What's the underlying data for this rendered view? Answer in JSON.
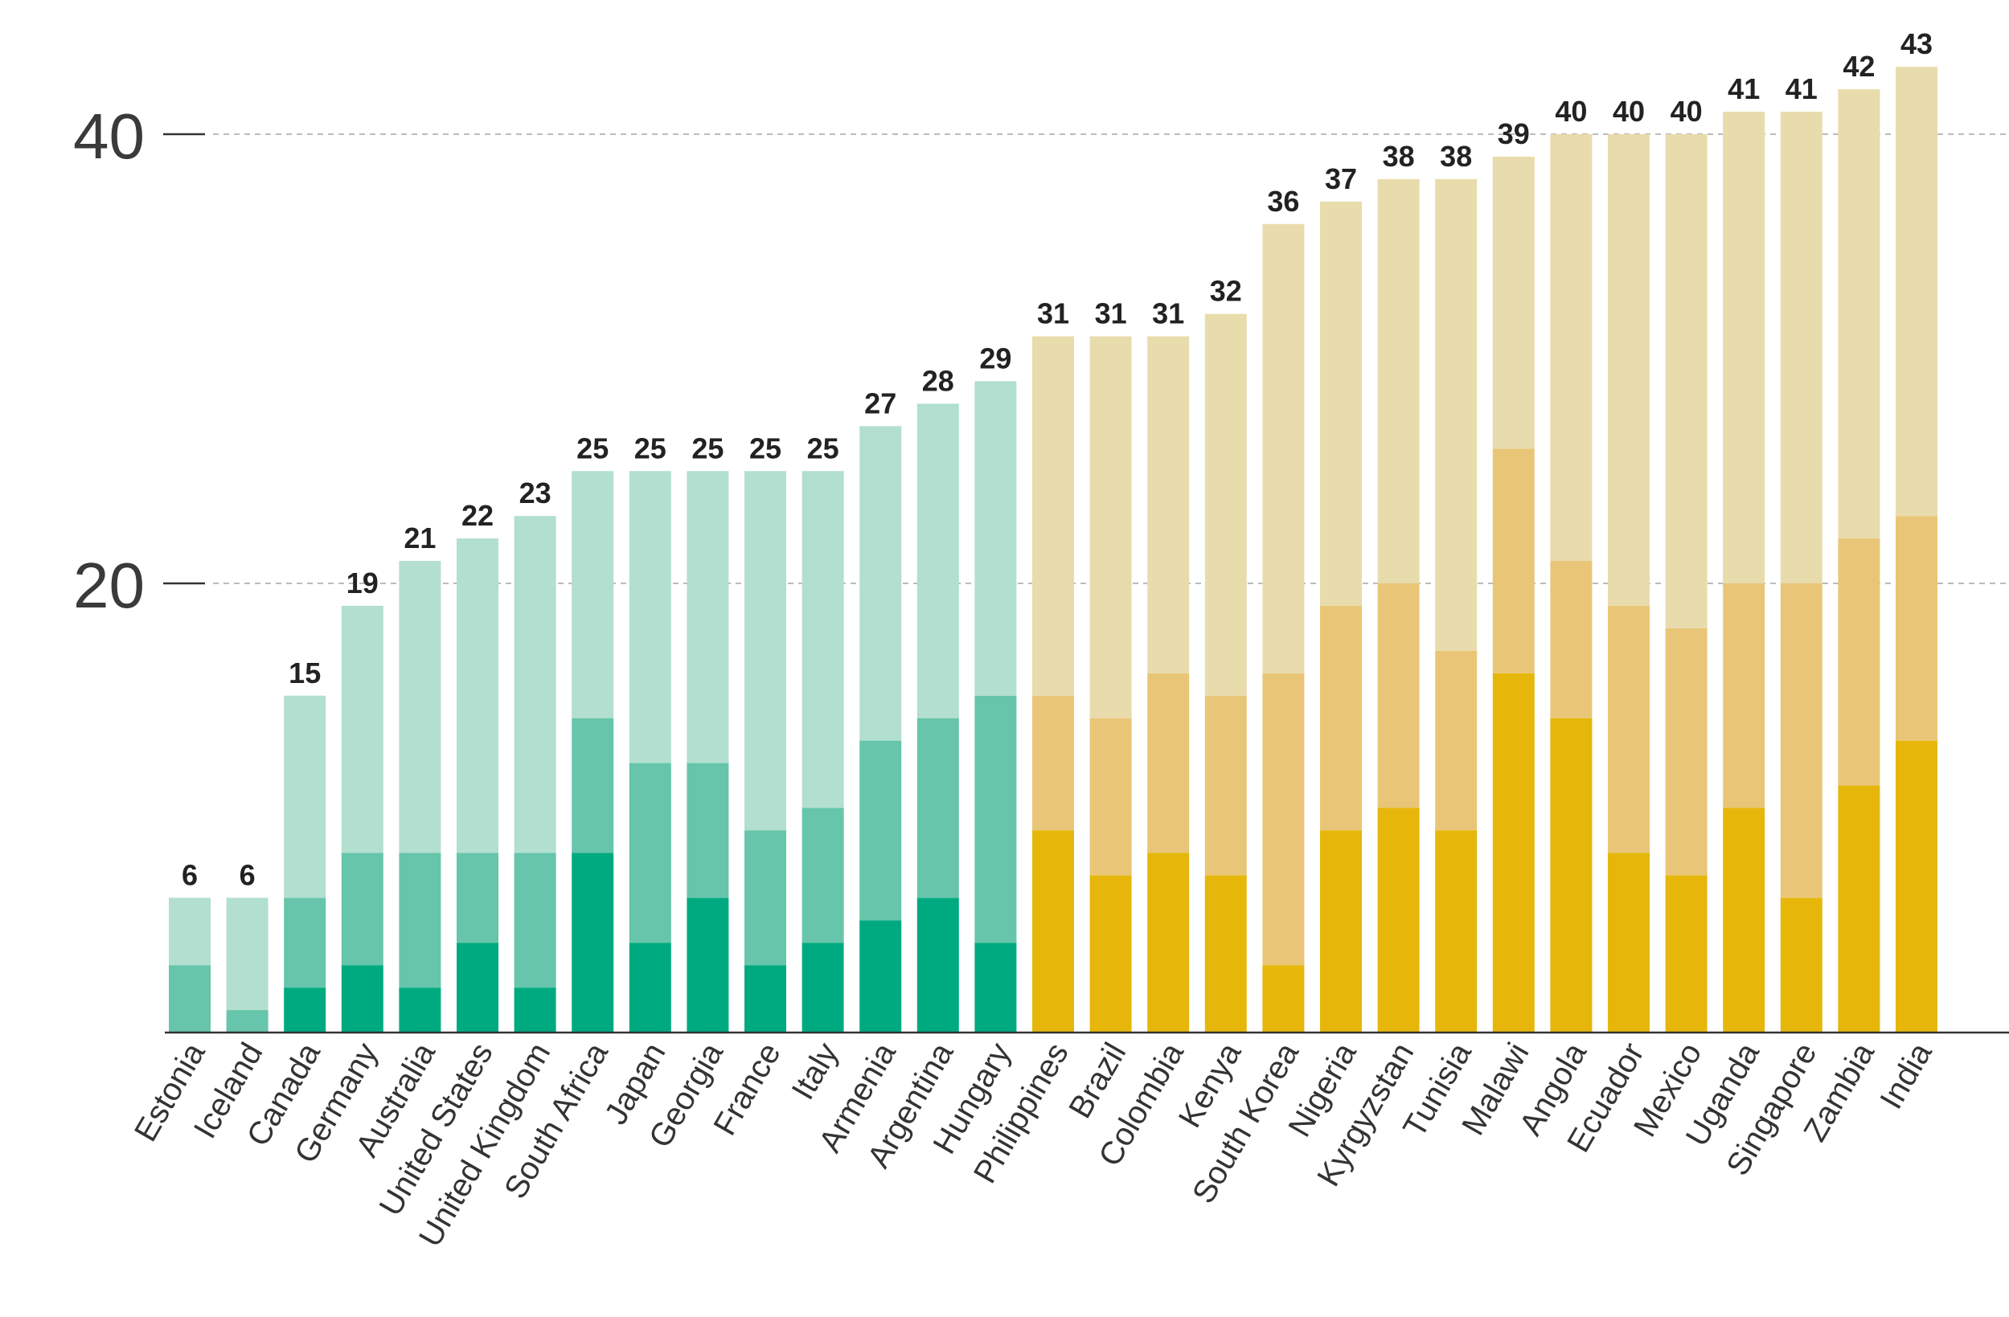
{
  "chart_data": {
    "type": "bar",
    "stacked": true,
    "categories": [
      "Estonia",
      "Iceland",
      "Canada",
      "Germany",
      "Australia",
      "United States",
      "United Kingdom",
      "South Africa",
      "Japan",
      "Georgia",
      "France",
      "Italy",
      "Armenia",
      "Argentina",
      "Hungary",
      "Philippines",
      "Brazil",
      "Colombia",
      "Kenya",
      "South Korea",
      "Nigeria",
      "Kyrgyzstan",
      "Tunisia",
      "Malawi",
      "Angola",
      "Ecuador",
      "Mexico",
      "Uganda",
      "Singapore",
      "Zambia",
      "India"
    ],
    "series": [
      {
        "values": [
          0,
          0,
          2,
          3,
          2,
          4,
          2,
          8,
          4,
          6,
          3,
          4,
          5,
          6,
          4,
          9,
          7,
          8,
          7,
          3,
          9,
          10,
          9,
          16,
          14,
          8,
          7,
          10,
          6,
          11,
          13
        ]
      },
      {
        "values": [
          3,
          1,
          4,
          5,
          6,
          4,
          6,
          6,
          8,
          6,
          6,
          6,
          8,
          8,
          11,
          6,
          7,
          8,
          8,
          13,
          10,
          10,
          8,
          10,
          7,
          11,
          11,
          10,
          14,
          11,
          10
        ]
      },
      {
        "values": [
          3,
          5,
          9,
          11,
          13,
          14,
          15,
          11,
          13,
          13,
          16,
          15,
          14,
          14,
          14,
          16,
          17,
          15,
          17,
          20,
          18,
          18,
          21,
          13,
          19,
          21,
          22,
          21,
          21,
          20,
          20
        ]
      }
    ],
    "totals": [
      6,
      6,
      15,
      19,
      21,
      22,
      23,
      25,
      25,
      25,
      25,
      25,
      27,
      28,
      29,
      31,
      31,
      31,
      32,
      36,
      37,
      38,
      38,
      39,
      40,
      40,
      40,
      41,
      41,
      42,
      43
    ],
    "total_labels": [
      "6",
      "6",
      "15",
      "19",
      "21",
      "22",
      "23",
      "25",
      "25",
      "25",
      "25",
      "25",
      "27",
      "28",
      "29",
      "31",
      "31",
      "31",
      "32",
      "36",
      "37",
      "38",
      "38",
      "39",
      "40",
      "40",
      "40",
      "41",
      "41",
      "42",
      "43"
    ],
    "yticks": [
      20,
      40
    ],
    "ytick_labels": [
      "20",
      "40"
    ],
    "ylim": [
      0,
      45
    ],
    "grid": true,
    "group_split_index": 15,
    "colors": {
      "green": [
        "#00aa80",
        "#66c5aa",
        "#b2dfcf"
      ],
      "gold": [
        "#e6b70a",
        "#e9c677",
        "#e8dcac"
      ],
      "grid": "#bbbbbb",
      "axis": "#333333"
    }
  }
}
